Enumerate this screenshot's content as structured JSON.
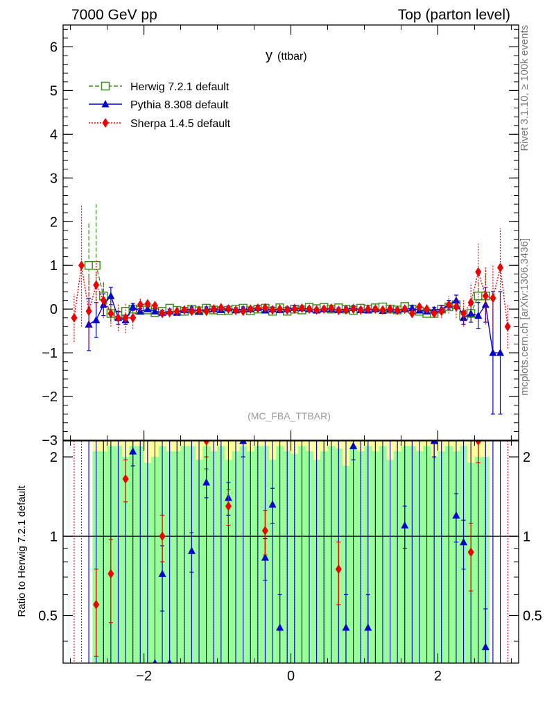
{
  "header": {
    "left": "7000 GeV pp",
    "right": "Top (parton level)"
  },
  "side": {
    "rivet": "Rivet 3.1.10, ≥ 100k events",
    "mcplots": "mcplots.cern.ch [arXiv:1306.3436]"
  },
  "chart_data": [
    {
      "type": "line",
      "title": "y",
      "title_sub": "(ttbar)",
      "analysis": "(MC_FBA_TTBAR)",
      "xlim": [
        -3.1,
        3.1
      ],
      "ylim": [
        -3,
        6.5
      ],
      "x_ticks": [
        -2,
        0,
        2
      ],
      "x_tick_labels": [
        "−2",
        "0",
        "2"
      ],
      "y_ticks": [
        -3,
        -2,
        -1,
        0,
        1,
        2,
        3,
        4,
        5,
        6
      ],
      "y_tick_labels": [
        "−3",
        "−2",
        "−1",
        "0",
        "1",
        "2",
        "3",
        "4",
        "5",
        "6"
      ],
      "legend_position": "top-left",
      "series": [
        {
          "name": "Herwig 7.2.1 default",
          "color": "#3a8f1e",
          "marker": "open-square",
          "style": "dashed",
          "x": [
            -2.75,
            -2.65,
            -2.55,
            -2.45,
            -2.35,
            -2.25,
            -2.15,
            -2.05,
            -1.95,
            -1.85,
            -1.75,
            -1.65,
            -1.55,
            -1.45,
            -1.35,
            -1.25,
            -1.15,
            -1.05,
            -0.95,
            -0.85,
            -0.75,
            -0.65,
            -0.55,
            -0.45,
            -0.35,
            -0.25,
            -0.15,
            -0.05,
            0.05,
            0.15,
            0.25,
            0.35,
            0.45,
            0.55,
            0.65,
            0.75,
            0.85,
            0.95,
            1.05,
            1.15,
            1.25,
            1.35,
            1.45,
            1.55,
            1.65,
            1.75,
            1.85,
            1.95,
            2.05,
            2.15,
            2.25,
            2.35,
            2.45,
            2.55,
            2.65
          ],
          "y": [
            1.0,
            1.0,
            0.3,
            -0.1,
            -0.15,
            -0.05,
            0.0,
            -0.03,
            -0.02,
            -0.08,
            -0.05,
            0.02,
            -0.03,
            -0.05,
            0.0,
            -0.04,
            0.02,
            -0.02,
            -0.04,
            -0.03,
            0.0,
            0.02,
            -0.04,
            0.0,
            0.02,
            -0.05,
            0.03,
            -0.05,
            0.0,
            -0.02,
            0.04,
            0.01,
            0.04,
            0.0,
            0.03,
            0.0,
            -0.03,
            0.02,
            0.0,
            0.03,
            0.05,
            0.0,
            -0.02,
            0.06,
            0.0,
            -0.05,
            -0.1,
            -0.1,
            0.0,
            0.05,
            0.1,
            -0.15,
            -0.1,
            0.3,
            0.3
          ],
          "err": [
            1.0,
            1.4,
            0.35,
            0.2,
            0.15,
            0.08,
            0.06,
            0.05,
            0.05,
            0.05,
            0.05,
            0.05,
            0.05,
            0.05,
            0.05,
            0.05,
            0.05,
            0.05,
            0.05,
            0.05,
            0.05,
            0.05,
            0.05,
            0.05,
            0.05,
            0.05,
            0.05,
            0.05,
            0.05,
            0.05,
            0.05,
            0.05,
            0.05,
            0.05,
            0.05,
            0.05,
            0.05,
            0.05,
            0.05,
            0.05,
            0.05,
            0.05,
            0.05,
            0.05,
            0.05,
            0.05,
            0.06,
            0.08,
            0.08,
            0.1,
            0.15,
            0.2,
            0.2,
            0.35,
            0.6
          ]
        },
        {
          "name": "Pythia 8.308 default",
          "color": "#0000cc",
          "marker": "filled-triangle",
          "style": "solid",
          "x": [
            -2.75,
            -2.65,
            -2.55,
            -2.45,
            -2.35,
            -2.25,
            -2.15,
            -2.05,
            -1.95,
            -1.85,
            -1.75,
            -1.65,
            -1.55,
            -1.45,
            -1.35,
            -1.25,
            -1.15,
            -1.05,
            -0.95,
            -0.85,
            -0.75,
            -0.65,
            -0.55,
            -0.45,
            -0.35,
            -0.25,
            -0.15,
            -0.05,
            0.05,
            0.15,
            0.25,
            0.35,
            0.45,
            0.55,
            0.65,
            0.75,
            0.85,
            0.95,
            1.05,
            1.15,
            1.25,
            1.35,
            1.45,
            1.55,
            1.65,
            1.75,
            1.85,
            1.95,
            2.05,
            2.15,
            2.25,
            2.35,
            2.45,
            2.55,
            2.65,
            2.75,
            2.85
          ],
          "y": [
            -0.35,
            -0.25,
            0.1,
            0.3,
            -0.2,
            -0.25,
            0.05,
            -0.05,
            0.0,
            -0.05,
            -0.08,
            -0.05,
            -0.08,
            -0.02,
            0.0,
            -0.05,
            0.0,
            0.0,
            -0.02,
            0.02,
            -0.02,
            0.0,
            0.0,
            0.03,
            -0.03,
            0.0,
            -0.02,
            0.0,
            0.03,
            0.02,
            0.0,
            -0.03,
            0.0,
            0.0,
            -0.02,
            0.0,
            0.03,
            -0.02,
            -0.03,
            0.0,
            -0.04,
            0.0,
            -0.02,
            0.0,
            0.02,
            -0.03,
            -0.05,
            -0.02,
            0.0,
            0.1,
            0.2,
            -0.2,
            -0.1,
            -0.15,
            0.1,
            -1.0,
            -1.0
          ],
          "err": [
            0.6,
            0.4,
            0.25,
            0.2,
            0.15,
            0.1,
            0.08,
            0.06,
            0.05,
            0.05,
            0.05,
            0.05,
            0.05,
            0.05,
            0.05,
            0.05,
            0.05,
            0.05,
            0.05,
            0.05,
            0.05,
            0.05,
            0.05,
            0.05,
            0.05,
            0.05,
            0.05,
            0.05,
            0.05,
            0.05,
            0.05,
            0.05,
            0.05,
            0.05,
            0.05,
            0.05,
            0.05,
            0.05,
            0.05,
            0.05,
            0.05,
            0.05,
            0.05,
            0.05,
            0.05,
            0.05,
            0.06,
            0.06,
            0.08,
            0.1,
            0.12,
            0.15,
            0.2,
            0.3,
            0.4,
            1.4,
            1.4
          ]
        },
        {
          "name": "Sherpa 1.4.5 default",
          "color": "#ee0000",
          "marker": "filled-diamond",
          "style": "dotted",
          "x": [
            -2.95,
            -2.85,
            -2.75,
            -2.65,
            -2.55,
            -2.45,
            -2.35,
            -2.25,
            -2.15,
            -2.05,
            -1.95,
            -1.85,
            -1.75,
            -1.65,
            -1.55,
            -1.45,
            -1.35,
            -1.25,
            -1.15,
            -1.05,
            -0.95,
            -0.85,
            -0.75,
            -0.65,
            -0.55,
            -0.45,
            -0.35,
            -0.25,
            -0.15,
            -0.05,
            0.05,
            0.15,
            0.25,
            0.35,
            0.45,
            0.55,
            0.65,
            0.75,
            0.85,
            0.95,
            1.05,
            1.15,
            1.25,
            1.35,
            1.45,
            1.55,
            1.65,
            1.75,
            1.85,
            1.95,
            2.05,
            2.15,
            2.25,
            2.35,
            2.45,
            2.55,
            2.65,
            2.75,
            2.85,
            2.95
          ],
          "y": [
            -0.2,
            1.0,
            -0.05,
            0.55,
            0.2,
            -0.1,
            -0.2,
            -0.2,
            -0.2,
            0.1,
            0.12,
            0.08,
            -0.1,
            -0.08,
            -0.05,
            -0.02,
            -0.05,
            -0.03,
            -0.05,
            0.0,
            0.03,
            0.0,
            -0.03,
            -0.05,
            0.0,
            0.02,
            0.03,
            -0.02,
            0.0,
            -0.02,
            0.0,
            0.02,
            0.0,
            -0.02,
            0.0,
            0.02,
            -0.03,
            -0.02,
            0.0,
            -0.02,
            0.0,
            0.0,
            -0.02,
            0.0,
            -0.03,
            0.0,
            -0.1,
            0.05,
            0.0,
            -0.1,
            -0.05,
            0.1,
            0.05,
            -0.1,
            0.15,
            0.85,
            0.3,
            0.25,
            0.95,
            -0.4
          ],
          "err": [
            0.55,
            1.4,
            0.8,
            0.55,
            0.4,
            0.3,
            0.3,
            0.35,
            0.25,
            0.15,
            0.1,
            0.08,
            0.07,
            0.06,
            0.05,
            0.05,
            0.05,
            0.05,
            0.05,
            0.05,
            0.05,
            0.05,
            0.05,
            0.05,
            0.05,
            0.05,
            0.05,
            0.05,
            0.05,
            0.05,
            0.05,
            0.05,
            0.05,
            0.05,
            0.05,
            0.05,
            0.05,
            0.05,
            0.05,
            0.05,
            0.05,
            0.05,
            0.05,
            0.05,
            0.05,
            0.05,
            0.06,
            0.07,
            0.08,
            0.1,
            0.15,
            0.2,
            0.25,
            0.3,
            0.45,
            0.65,
            0.65,
            0.75,
            0.9,
            0.5
          ]
        }
      ]
    },
    {
      "type": "line",
      "ylabel": "Ratio to Herwig 7.2.1 default",
      "xlim": [
        -3.1,
        3.1
      ],
      "ylim": [
        0.33,
        2.3
      ],
      "y_ticks": [
        0.5,
        1,
        2
      ],
      "y_tick_labels": [
        "0.5",
        "1",
        "2"
      ],
      "x_ticks": [
        -2,
        0,
        2
      ],
      "x_tick_labels": [
        "−2",
        "0",
        "2"
      ],
      "band_green": [
        0.33,
        2.1,
        2.1,
        2.2,
        2.2,
        2.0,
        2.2,
        2.2,
        1.9,
        2.0,
        2.2,
        2.1,
        2.1,
        2.2,
        2.2,
        1.95,
        2.2,
        2.1,
        2.2,
        1.95,
        2.1,
        2.2,
        2.1,
        2.2,
        2.2,
        1.95,
        2.2,
        2.1,
        2.05,
        2.2,
        2.1,
        1.95,
        2.1,
        2.2,
        2.15,
        1.85,
        2.2,
        2.1,
        2.2,
        2.1,
        2.2,
        1.95,
        2.1,
        2.2,
        2.2,
        2.1,
        2.2,
        2.0,
        2.1,
        2.2,
        2.1,
        2.2,
        1.9,
        2.0,
        2.0
      ],
      "band_yellow": [
        0.33,
        2.3,
        2.3,
        2.3,
        2.3,
        2.3,
        2.3,
        2.3,
        2.3,
        2.3,
        2.3,
        2.3,
        2.3,
        2.3,
        2.3,
        2.3,
        2.3,
        2.3,
        2.3,
        2.3,
        2.3,
        2.3,
        2.3,
        2.3,
        2.3,
        2.3,
        2.3,
        2.3,
        2.3,
        2.3,
        2.3,
        2.3,
        2.3,
        2.3,
        2.3,
        2.3,
        2.3,
        2.3,
        2.3,
        2.3,
        2.3,
        2.3,
        2.3,
        2.3,
        2.3,
        2.3,
        2.3,
        2.3,
        2.3,
        2.3,
        2.3,
        2.3,
        2.3,
        2.3,
        2.3
      ],
      "series": [
        {
          "name": "Pythia 8.308 default",
          "color": "#0000cc",
          "x": [
            -2.15,
            -1.85,
            -1.75,
            -1.65,
            -1.35,
            -1.15,
            -0.85,
            -0.65,
            -0.35,
            -0.25,
            -0.15,
            0.75,
            0.85,
            1.05,
            1.55,
            1.95,
            2.25,
            2.35,
            2.65
          ],
          "y": [
            2.1,
            0.2,
            0.72,
            0.2,
            0.88,
            1.6,
            1.4,
            2.3,
            0.83,
            1.32,
            0.45,
            0.45,
            2.2,
            0.45,
            1.1,
            2.3,
            1.2,
            0.95,
            0.38
          ],
          "err": [
            0.25,
            0.1,
            0.2,
            0.1,
            0.15,
            0.2,
            0.2,
            0.3,
            0.15,
            0.2,
            0.15,
            0.15,
            0.25,
            0.15,
            0.2,
            0.3,
            0.25,
            0.2,
            0.15
          ]
        },
        {
          "name": "Sherpa 1.4.5 default",
          "color": "#ee0000",
          "x": [
            -2.65,
            -2.45,
            -2.25,
            -1.75,
            -1.15,
            -0.85,
            -0.35,
            0.65,
            2.45,
            2.55
          ],
          "y": [
            0.55,
            0.72,
            1.65,
            1.0,
            2.3,
            1.3,
            1.05,
            0.75,
            0.87,
            2.3
          ],
          "err": [
            0.2,
            0.25,
            0.3,
            0.2,
            0.3,
            0.2,
            0.2,
            0.2,
            0.25,
            0.4
          ]
        }
      ]
    }
  ]
}
